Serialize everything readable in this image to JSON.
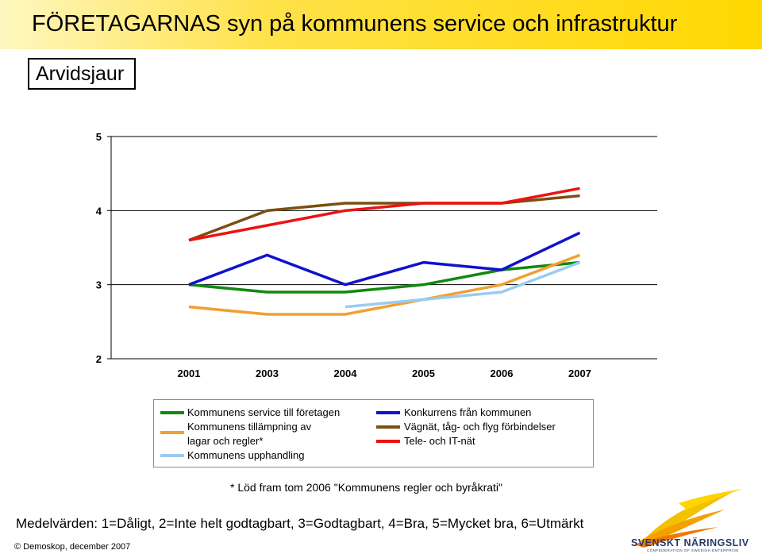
{
  "header": {
    "title": "FÖRETAGARNAS syn på kommunens service och infrastruktur",
    "municipality": "Arvidsjaur"
  },
  "chart_data": {
    "type": "line",
    "title": "",
    "xlabel": "",
    "ylabel": "",
    "categories": [
      "2001",
      "2003",
      "2004",
      "2005",
      "2006",
      "2007"
    ],
    "ylim": [
      2,
      5
    ],
    "yticks": [
      "2",
      "3",
      "4",
      "5"
    ],
    "grid": "horizontal",
    "legend_position": "bottom",
    "series": [
      {
        "name": "Kommunens service till företagen",
        "color": "#118811",
        "values": [
          3.0,
          2.9,
          2.9,
          3.0,
          3.2,
          3.3
        ]
      },
      {
        "name": "Kommunens tillämpning av lagar och regler*",
        "color": "#f0a030",
        "values": [
          2.7,
          2.6,
          2.6,
          2.8,
          3.0,
          3.4
        ]
      },
      {
        "name": "Kommunens upphandling",
        "color": "#99ccee",
        "values": [
          null,
          null,
          2.7,
          2.8,
          2.9,
          3.3
        ]
      },
      {
        "name": "Konkurrens från kommunen",
        "color": "#1111cc",
        "values": [
          3.0,
          3.4,
          3.0,
          3.3,
          3.2,
          3.7
        ]
      },
      {
        "name": "Vägnät, tåg- och flyg förbindelser",
        "color": "#7a4f10",
        "values": [
          3.6,
          4.0,
          4.1,
          4.1,
          4.1,
          4.2
        ]
      },
      {
        "name": "Tele- och IT-nät",
        "color": "#ee1111",
        "values": [
          3.6,
          3.8,
          4.0,
          4.1,
          4.1,
          4.3
        ]
      }
    ]
  },
  "legend": {
    "left": [
      {
        "lines": [
          "Kommunens service till företagen"
        ],
        "color": "#118811"
      },
      {
        "lines": [
          "Kommunens tillämpning av",
          "lagar och regler*"
        ],
        "color": "#f0a030"
      },
      {
        "lines": [
          "Kommunens upphandling"
        ],
        "color": "#99ccee"
      }
    ],
    "right": [
      {
        "lines": [
          "Konkurrens från kommunen"
        ],
        "color": "#1111cc"
      },
      {
        "lines": [
          "Vägnät, tåg- och flyg förbindelser"
        ],
        "color": "#7a4f10"
      },
      {
        "lines": [
          "Tele- och IT-nät"
        ],
        "color": "#ee1111"
      }
    ]
  },
  "footnote": "* Löd fram tom 2006 \"Kommunens regler och byråkrati\"",
  "scale_note": "Medelvärden: 1=Dåligt, 2=Inte helt godtagbart, 3=Godtagbart, 4=Bra, 5=Mycket bra, 6=Utmärkt",
  "copyright": "© Demoskop, december 2007",
  "logo": {
    "name": "SVENSKT NÄRINGSLIV",
    "sub": "CONFEDERATION OF SWEDISH ENTERPRISE",
    "icon": "sun-rays-logo"
  }
}
